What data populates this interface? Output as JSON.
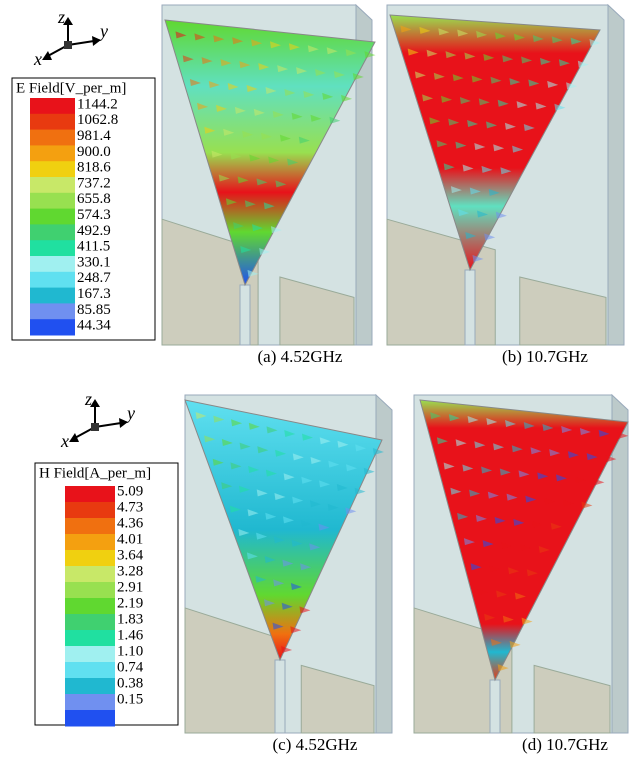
{
  "panels": [
    {
      "axes": {
        "z": "z",
        "y": "y",
        "x": "x"
      },
      "legend": {
        "title": "E Field[V_per_m]",
        "values": [
          "1144.2",
          "1062.8",
          "981.4",
          "900.0",
          "818.6",
          "737.2",
          "655.8",
          "574.3",
          "492.9",
          "411.5",
          "330.1",
          "248.7",
          "167.3",
          "85.85",
          "44.34"
        ]
      },
      "captions": [
        "(a) 4.52GHz",
        "(b) 10.7GHz"
      ]
    },
    {
      "axes": {
        "z": "z",
        "y": "y",
        "x": "x"
      },
      "legend": {
        "title": "H Field[A_per_m]",
        "values": [
          "5.09",
          "4.73",
          "4.36",
          "4.01",
          "3.64",
          "3.28",
          "2.91",
          "2.19",
          "1.83",
          "1.46",
          "1.10",
          "0.74",
          "0.38",
          "0.15"
        ]
      },
      "captions": [
        "(c) 4.52GHz",
        "(d) 10.7GHz"
      ]
    }
  ]
}
